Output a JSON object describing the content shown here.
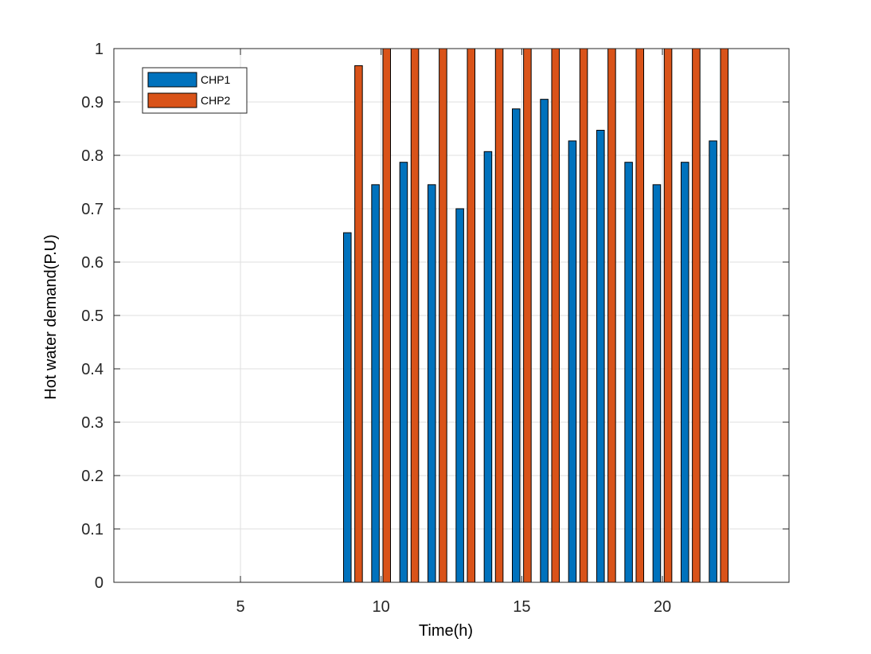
{
  "chart_data": {
    "type": "bar",
    "title": "",
    "xlabel": "Time(h)",
    "ylabel": "Hot water demand(P.U)",
    "xlim": [
      0.5,
      24.5
    ],
    "ylim": [
      0,
      1
    ],
    "xticks": [
      "5",
      "10",
      "15",
      "20"
    ],
    "yticks": [
      "0",
      "0.1",
      "0.2",
      "0.3",
      "0.4",
      "0.5",
      "0.6",
      "0.7",
      "0.8",
      "0.9",
      "1"
    ],
    "grid": true,
    "legend_position": "top-left",
    "x": [
      9,
      10,
      11,
      12,
      13,
      14,
      15,
      16,
      17,
      18,
      19,
      20,
      21,
      22
    ],
    "series": [
      {
        "name": "CHP1",
        "color": "#0072BD",
        "values": [
          0.655,
          0.745,
          0.787,
          0.745,
          0.7,
          0.807,
          0.887,
          0.905,
          0.827,
          0.847,
          0.787,
          0.745,
          0.787,
          0.827
        ]
      },
      {
        "name": "CHP2",
        "color": "#D95319",
        "values": [
          0.968,
          1,
          1,
          1,
          1,
          1,
          1,
          1,
          1,
          1,
          1,
          1,
          1,
          1
        ]
      }
    ]
  }
}
